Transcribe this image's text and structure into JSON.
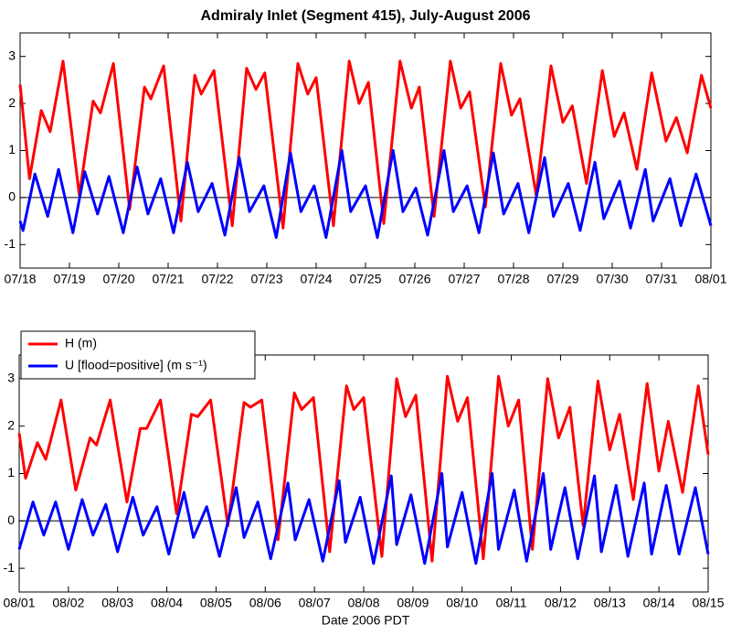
{
  "chart_data": [
    {
      "type": "line",
      "title": "Admiraly Inlet (Segment 415), July-August 2006",
      "xlim": [
        0,
        14
      ],
      "ylim": [
        -1.5,
        3.5
      ],
      "yticks": [
        -1,
        0,
        1,
        2,
        3
      ],
      "zero_line": true,
      "xticks": [
        {
          "value": 0,
          "label": "07/18"
        },
        {
          "value": 1,
          "label": "07/19"
        },
        {
          "value": 2,
          "label": "07/20"
        },
        {
          "value": 3,
          "label": "07/21"
        },
        {
          "value": 4,
          "label": "07/22"
        },
        {
          "value": 5,
          "label": "07/23"
        },
        {
          "value": 6,
          "label": "07/24"
        },
        {
          "value": 7,
          "label": "07/25"
        },
        {
          "value": 8,
          "label": "07/26"
        },
        {
          "value": 9,
          "label": "07/27"
        },
        {
          "value": 10,
          "label": "07/28"
        },
        {
          "value": 11,
          "label": "07/29"
        },
        {
          "value": 12,
          "label": "07/30"
        },
        {
          "value": 13,
          "label": "07/31"
        },
        {
          "value": 14,
          "label": "08/01"
        }
      ],
      "series": [
        {
          "color": "#ff0000",
          "x": [
            0,
            0.19,
            0.43,
            0.61,
            0.87,
            1.2,
            1.48,
            1.63,
            1.89,
            2.22,
            2.52,
            2.65,
            2.91,
            3.26,
            3.54,
            3.67,
            3.93,
            4.3,
            4.59,
            4.78,
            4.96,
            5.33,
            5.63,
            5.83,
            6.0,
            6.35,
            6.67,
            6.87,
            7.06,
            7.37,
            7.7,
            7.93,
            8.09,
            8.39,
            8.72,
            8.93,
            9.11,
            9.43,
            9.74,
            9.96,
            10.13,
            10.46,
            10.76,
            11.0,
            11.19,
            11.48,
            11.8,
            12.04,
            12.24,
            12.5,
            12.8,
            13.09,
            13.3,
            13.52,
            13.81,
            14
          ],
          "values": [
            2.4,
            0.4,
            1.85,
            1.4,
            2.9,
            0.05,
            2.05,
            1.8,
            2.85,
            -0.25,
            2.35,
            2.1,
            2.8,
            -0.5,
            2.6,
            2.2,
            2.7,
            -0.6,
            2.75,
            2.3,
            2.65,
            -0.65,
            2.85,
            2.2,
            2.55,
            -0.6,
            2.9,
            2.0,
            2.45,
            -0.55,
            2.9,
            1.9,
            2.35,
            -0.4,
            2.9,
            1.9,
            2.25,
            -0.2,
            2.85,
            1.75,
            2.1,
            0.05,
            2.8,
            1.6,
            1.95,
            0.3,
            2.7,
            1.3,
            1.8,
            0.6,
            2.65,
            1.2,
            1.7,
            0.95,
            2.6,
            1.9
          ]
        },
        {
          "color": "#0000ff",
          "x": [
            0,
            0.06,
            0.3,
            0.56,
            0.78,
            1.07,
            1.31,
            1.57,
            1.8,
            2.09,
            2.37,
            2.59,
            2.85,
            3.11,
            3.39,
            3.61,
            3.89,
            4.15,
            4.44,
            4.65,
            4.94,
            5.19,
            5.48,
            5.69,
            5.96,
            6.2,
            6.52,
            6.7,
            7.0,
            7.24,
            7.56,
            7.76,
            8.02,
            8.26,
            8.59,
            8.78,
            9.06,
            9.3,
            9.59,
            9.8,
            10.09,
            10.31,
            10.63,
            10.81,
            11.11,
            11.35,
            11.65,
            11.83,
            12.15,
            12.37,
            12.67,
            12.83,
            13.17,
            13.39,
            13.7,
            14
          ],
          "values": [
            -0.5,
            -0.7,
            0.5,
            -0.4,
            0.6,
            -0.75,
            0.55,
            -0.35,
            0.45,
            -0.75,
            0.65,
            -0.35,
            0.4,
            -0.75,
            0.75,
            -0.3,
            0.3,
            -0.8,
            0.85,
            -0.3,
            0.25,
            -0.85,
            0.95,
            -0.3,
            0.25,
            -0.85,
            1.0,
            -0.3,
            0.25,
            -0.85,
            1.0,
            -0.3,
            0.2,
            -0.8,
            1.0,
            -0.3,
            0.25,
            -0.75,
            0.95,
            -0.35,
            0.3,
            -0.75,
            0.85,
            -0.4,
            0.3,
            -0.7,
            0.75,
            -0.45,
            0.35,
            -0.65,
            0.6,
            -0.5,
            0.4,
            -0.6,
            0.5,
            -0.6
          ]
        }
      ]
    },
    {
      "type": "line",
      "xlabel": "Date 2006 PDT",
      "legend": "upper left",
      "xlim": [
        0,
        14
      ],
      "ylim": [
        -1.5,
        3.5
      ],
      "yticks": [
        -1,
        0,
        1,
        2,
        3
      ],
      "zero_line": true,
      "xticks": [
        {
          "value": 0,
          "label": "08/01"
        },
        {
          "value": 1,
          "label": "08/02"
        },
        {
          "value": 2,
          "label": "08/03"
        },
        {
          "value": 3,
          "label": "08/04"
        },
        {
          "value": 4,
          "label": "08/05"
        },
        {
          "value": 5,
          "label": "08/06"
        },
        {
          "value": 6,
          "label": "08/07"
        },
        {
          "value": 7,
          "label": "08/08"
        },
        {
          "value": 8,
          "label": "08/09"
        },
        {
          "value": 9,
          "label": "08/10"
        },
        {
          "value": 10,
          "label": "08/11"
        },
        {
          "value": 11,
          "label": "08/12"
        },
        {
          "value": 12,
          "label": "08/13"
        },
        {
          "value": 13,
          "label": "08/14"
        },
        {
          "value": 14,
          "label": "08/15"
        }
      ],
      "series": [
        {
          "name": "H (m)",
          "color": "#ff0000",
          "x": [
            0,
            0.13,
            0.37,
            0.54,
            0.85,
            1.15,
            1.44,
            1.57,
            1.85,
            2.19,
            2.46,
            2.59,
            2.87,
            3.2,
            3.5,
            3.63,
            3.89,
            4.24,
            4.57,
            4.7,
            4.93,
            5.26,
            5.59,
            5.74,
            5.98,
            6.31,
            6.65,
            6.8,
            7.0,
            7.37,
            7.67,
            7.85,
            8.06,
            8.39,
            8.7,
            8.91,
            9.11,
            9.43,
            9.74,
            9.94,
            10.15,
            10.43,
            10.74,
            10.96,
            11.19,
            11.46,
            11.76,
            12.0,
            12.2,
            12.48,
            12.76,
            13.0,
            13.19,
            13.48,
            13.8,
            14
          ],
          "values": [
            1.85,
            0.9,
            1.65,
            1.3,
            2.55,
            0.65,
            1.75,
            1.6,
            2.55,
            0.4,
            1.95,
            1.95,
            2.55,
            0.15,
            2.25,
            2.2,
            2.55,
            -0.1,
            2.5,
            2.4,
            2.55,
            -0.4,
            2.7,
            2.35,
            2.6,
            -0.65,
            2.85,
            2.35,
            2.6,
            -0.75,
            3.0,
            2.2,
            2.65,
            -0.85,
            3.05,
            2.1,
            2.6,
            -0.8,
            3.05,
            2.0,
            2.55,
            -0.6,
            3.0,
            1.75,
            2.4,
            -0.1,
            2.95,
            1.5,
            2.25,
            0.45,
            2.9,
            1.05,
            2.1,
            0.6,
            2.85,
            1.4
          ]
        },
        {
          "name": "U [flood=positive] (m s⁻¹)",
          "color": "#0000ff",
          "x": [
            0,
            0.28,
            0.5,
            0.74,
            1.0,
            1.28,
            1.5,
            1.76,
            2.0,
            2.31,
            2.52,
            2.8,
            3.04,
            3.35,
            3.54,
            3.81,
            4.07,
            4.41,
            4.57,
            4.85,
            5.11,
            5.46,
            5.61,
            5.89,
            6.17,
            6.5,
            6.63,
            6.93,
            7.2,
            7.56,
            7.67,
            7.96,
            8.24,
            8.59,
            8.7,
            9.0,
            9.28,
            9.61,
            9.74,
            10.06,
            10.31,
            10.65,
            10.8,
            11.09,
            11.35,
            11.69,
            11.83,
            12.13,
            12.37,
            12.7,
            12.85,
            13.15,
            13.41,
            13.74,
            14
          ],
          "values": [
            -0.6,
            0.4,
            -0.3,
            0.4,
            -0.6,
            0.45,
            -0.3,
            0.35,
            -0.65,
            0.5,
            -0.3,
            0.3,
            -0.7,
            0.6,
            -0.35,
            0.3,
            -0.75,
            0.7,
            -0.35,
            0.4,
            -0.8,
            0.8,
            -0.4,
            0.45,
            -0.85,
            0.85,
            -0.45,
            0.5,
            -0.9,
            0.95,
            -0.5,
            0.55,
            -0.9,
            1.0,
            -0.55,
            0.6,
            -0.9,
            1.0,
            -0.6,
            0.65,
            -0.85,
            1.0,
            -0.6,
            0.7,
            -0.8,
            0.95,
            -0.65,
            0.75,
            -0.75,
            0.8,
            -0.7,
            0.75,
            -0.7,
            0.7,
            -0.7
          ]
        }
      ]
    }
  ]
}
